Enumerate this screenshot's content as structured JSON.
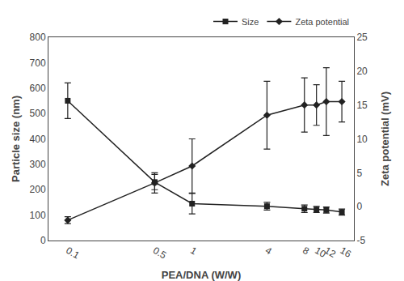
{
  "chart_data": {
    "type": "line",
    "x": [
      0.1,
      0.5,
      1,
      4,
      8,
      10,
      12,
      16
    ],
    "log": "x",
    "xlim": [
      0.07,
      20
    ],
    "xticks": [
      0.1,
      0.5,
      1,
      4,
      8,
      10,
      12,
      16
    ],
    "xlabel": "PEA/DNA (W/W)",
    "ylabel": "Particle size (nm)",
    "y2label": "Zeta potential (mV)",
    "ylim": [
      0,
      800
    ],
    "yticks": [
      0,
      100,
      200,
      300,
      400,
      500,
      600,
      700,
      800
    ],
    "y2lim": [
      -5,
      25
    ],
    "y2ticks": [
      -5,
      0,
      5,
      10,
      15,
      20,
      25
    ],
    "grid": false,
    "legend": "upper right",
    "series": [
      {
        "name": "Size",
        "color": "#222222",
        "marker": "square",
        "line_style": "solid",
        "values": [
          550,
          230,
          145,
          135,
          125,
          122,
          120,
          112
        ],
        "yerr": [
          70,
          30,
          40,
          15,
          15,
          12,
          12,
          12
        ]
      },
      {
        "name": "Zeta potential",
        "axis": "y2",
        "color": "#222222",
        "marker": "diamond",
        "line_style": "solid",
        "values": [
          -2,
          3.5,
          6,
          13.5,
          15,
          15,
          15.5,
          15.5
        ],
        "yerr": [
          0.5,
          1.5,
          4,
          5,
          4,
          3,
          5,
          3
        ]
      }
    ]
  }
}
